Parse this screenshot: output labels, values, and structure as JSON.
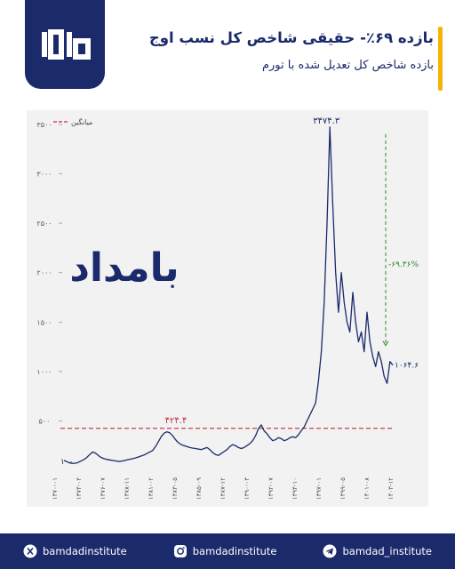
{
  "header": {
    "title": "بازده ۶۹٪- حقیقی شاخص کل نسب اوج",
    "subtitle": "بازده شاخص کل تعدیل شده با تورم"
  },
  "colors": {
    "navy": "#1b2a6b",
    "accent": "#f5b400",
    "line": "#1b2a6b",
    "mean_line": "#c0303a",
    "drawdown_line": "#2e8b2e"
  },
  "chart_data": {
    "type": "line",
    "title": "",
    "xlabel": "",
    "ylabel": "",
    "ylim": [
      0,
      3500
    ],
    "yticks": [
      500,
      1000,
      1500,
      2000,
      2500,
      3000,
      3500
    ],
    "ytick_labels": [
      "۵۰۰",
      "۱۰۰۰",
      "۱۵۰۰",
      "۲۰۰۰",
      "۲۵۰۰",
      "۳۰۰۰",
      "۳۵۰۰"
    ],
    "x_tick_labels": [
      "۱۳۷۰-۰۱",
      "۱۳۷۴-۰۴",
      "۱۳۷۶-۰۷",
      "۱۳۷۸-۱۱",
      "۱۳۸۱-۰۲",
      "۱۳۸۳-۰۵",
      "۱۳۸۵-۰۹",
      "۱۳۸۷-۱۲",
      "۱۳۹۰-۰۳",
      "۱۳۹۲-۰۷",
      "۱۳۹۴-۱۰",
      "۱۳۹۷-۰۱",
      "۱۳۹۹-۰۵",
      "۱۴۰۱-۰۸",
      "۱۴۰۳-۱۲"
    ],
    "grid": false,
    "legend": {
      "position": "top-left",
      "entries": [
        "میانگین"
      ]
    },
    "series": [
      {
        "values": [
          100,
          88,
          75,
          70,
          72,
          80,
          95,
          110,
          130,
          160,
          185,
          175,
          150,
          130,
          118,
          110,
          105,
          100,
          95,
          90,
          92,
          98,
          105,
          112,
          118,
          125,
          135,
          145,
          155,
          170,
          185,
          200,
          240,
          290,
          340,
          375,
          390,
          380,
          350,
          310,
          280,
          260,
          250,
          240,
          230,
          225,
          220,
          215,
          210,
          220,
          230,
          210,
          180,
          160,
          150,
          170,
          190,
          210,
          240,
          260,
          250,
          230,
          220,
          230,
          250,
          270,
          300,
          350,
          420,
          460,
          400,
          370,
          330,
          300,
          310,
          330,
          320,
          300,
          310,
          330,
          340,
          330,
          360,
          400,
          440,
          500,
          560,
          620,
          680,
          900,
          1200,
          1700,
          2500,
          3474.3,
          2700,
          2000,
          1600,
          2000,
          1700,
          1500,
          1400,
          1800,
          1500,
          1300,
          1400,
          1200,
          1600,
          1300,
          1150,
          1050,
          1200,
          1100,
          950,
          880,
          1100,
          1064.6
        ]
      }
    ],
    "mean": {
      "value": 424.4,
      "label": "۴۲۴.۴",
      "legend_label": "میانگین"
    },
    "annotations": {
      "start": "۱۰۰",
      "peak": "۳۴۷۴.۳",
      "end": "۱۰۶۴.۶",
      "drawdown": "-۶۹.۳۶%"
    },
    "watermark": "بامداد"
  },
  "footer": {
    "items": [
      {
        "icon": "x-twitter-icon",
        "label": "bamdadinstitute"
      },
      {
        "icon": "instagram-icon",
        "label": "bamdadinstitute"
      },
      {
        "icon": "telegram-icon",
        "label": "bamdad_institute"
      }
    ]
  }
}
